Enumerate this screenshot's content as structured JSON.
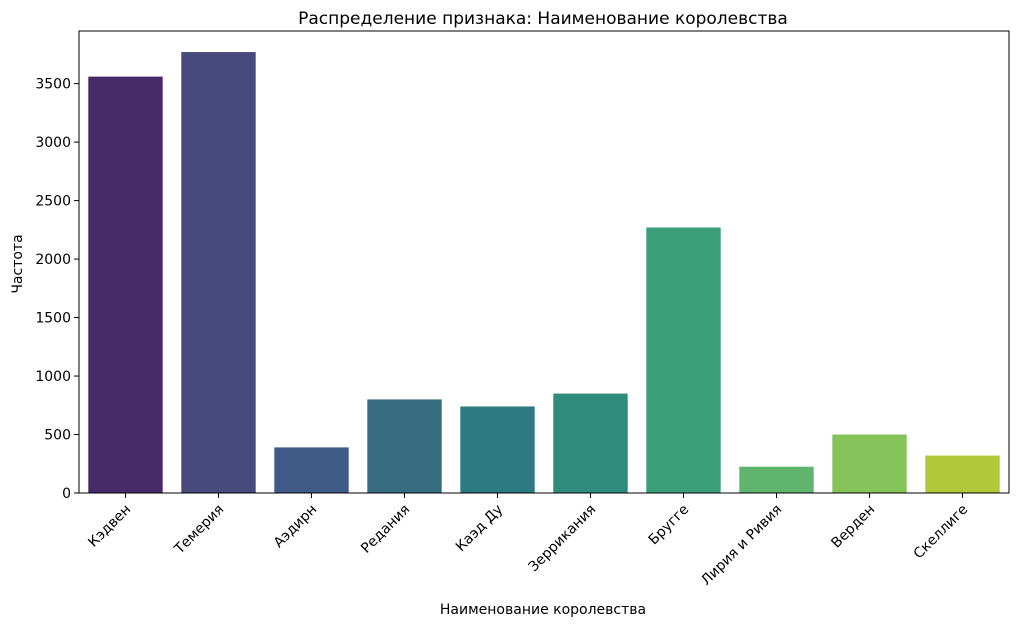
{
  "chart_data": {
    "type": "bar",
    "title": "Распределение признака: Наименование королевства",
    "xlabel": "Наименование королевства",
    "ylabel": "Частота",
    "categories": [
      "Кэдвен",
      "Темерия",
      "Аэдирн",
      "Редания",
      "Каэд Ду",
      "Зеррикания",
      "Бругге",
      "Лирия и Ривия",
      "Верден",
      "Скеллиге"
    ],
    "values": [
      3560,
      3770,
      390,
      800,
      740,
      850,
      2270,
      225,
      500,
      320
    ],
    "colors": [
      "#482a6a",
      "#48497d",
      "#3f5a87",
      "#376b80",
      "#2e7a82",
      "#2f8b7c",
      "#3d9f79",
      "#5fb56e",
      "#86c35a",
      "#b0c83a"
    ],
    "ylim": [
      0,
      3950
    ],
    "yticks": [
      0,
      500,
      1000,
      1500,
      2000,
      2500,
      3000,
      3500
    ],
    "grid": false,
    "legend": "none"
  }
}
